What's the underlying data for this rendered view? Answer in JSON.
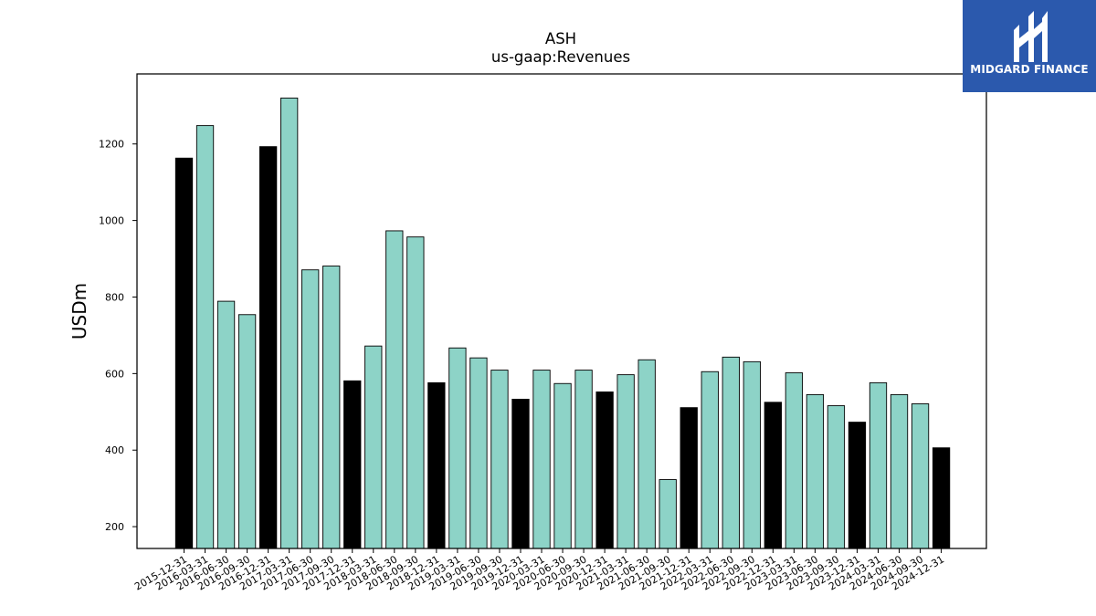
{
  "brand": {
    "name": "MIDGARD FINANCE",
    "color": "#2b59ad"
  },
  "chart_data": {
    "type": "bar",
    "title": "ASH",
    "subtitle": "us-gaap:Revenues",
    "xlabel": "",
    "ylabel": "USDm",
    "ylim": [
      143,
      1383
    ],
    "yticks": [
      200,
      400,
      600,
      800,
      1000,
      1200
    ],
    "grid": false,
    "colors": {
      "quarter": "#8dd3c7",
      "fiscal_year_end": "#000000"
    },
    "categories": [
      "2015-12-31",
      "2016-03-31",
      "2016-06-30",
      "2016-09-30",
      "2016-12-31",
      "2017-03-31",
      "2017-06-30",
      "2017-09-30",
      "2017-12-31",
      "2018-03-31",
      "2018-06-30",
      "2018-09-30",
      "2018-12-31",
      "2019-03-31",
      "2019-06-30",
      "2019-09-30",
      "2019-12-31",
      "2020-03-31",
      "2020-06-30",
      "2020-09-30",
      "2020-12-31",
      "2021-03-31",
      "2021-06-30",
      "2021-09-30",
      "2021-12-31",
      "2022-03-31",
      "2022-06-30",
      "2022-09-30",
      "2022-12-31",
      "2023-03-31",
      "2023-06-30",
      "2023-09-30",
      "2023-12-31",
      "2024-03-31",
      "2024-06-30",
      "2024-09-30",
      "2024-12-31"
    ],
    "values": [
      1163,
      1248,
      789,
      754,
      1193,
      1320,
      871,
      881,
      581,
      672,
      973,
      957,
      576,
      667,
      641,
      609,
      533,
      609,
      574,
      609,
      552,
      597,
      636,
      323,
      511,
      605,
      643,
      631,
      525,
      602,
      545,
      516,
      473,
      576,
      545,
      521,
      406
    ],
    "highlight": [
      true,
      false,
      false,
      false,
      true,
      false,
      false,
      false,
      true,
      false,
      false,
      false,
      true,
      false,
      false,
      false,
      true,
      false,
      false,
      false,
      true,
      false,
      false,
      false,
      true,
      false,
      false,
      false,
      true,
      false,
      false,
      false,
      true,
      false,
      false,
      false,
      true
    ]
  }
}
